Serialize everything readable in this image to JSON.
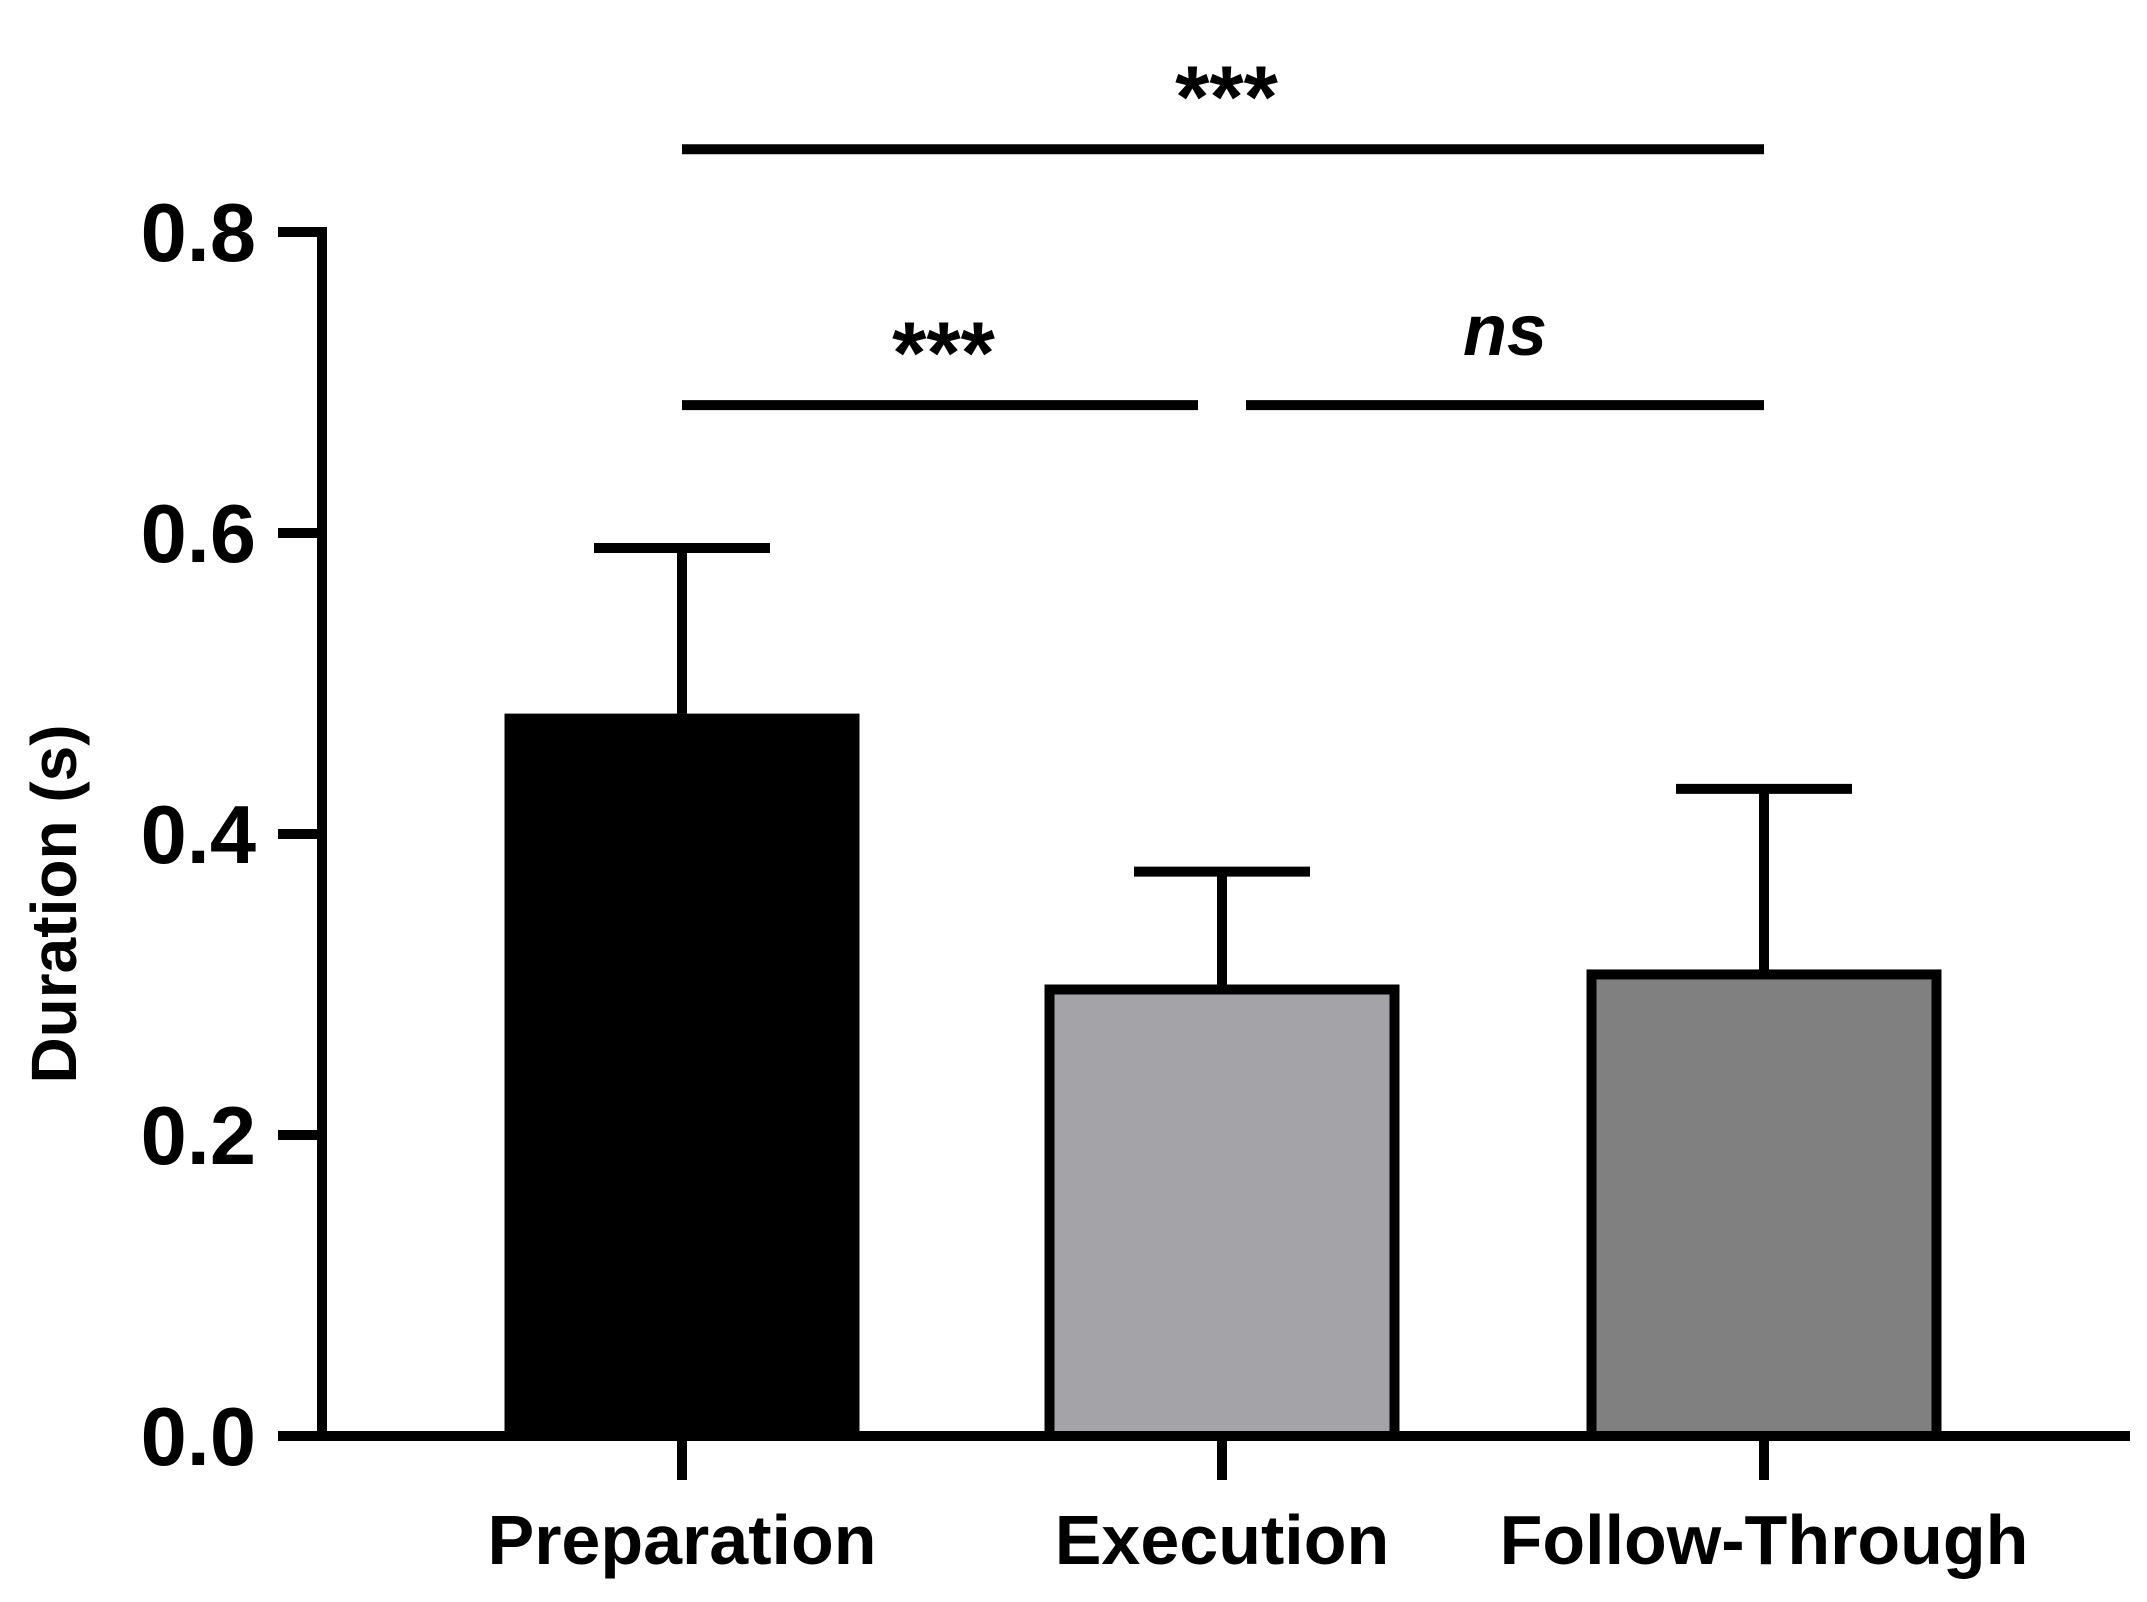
{
  "chart_data": {
    "type": "bar",
    "categories": [
      "Preparation",
      "Execution",
      "Follow-Through"
    ],
    "values": [
      0.48,
      0.3,
      0.31
    ],
    "errors": [
      0.11,
      0.075,
      0.12
    ],
    "bar_fill_colors": [
      "#000000",
      "#a4a3a7",
      "#808080"
    ],
    "bar_edge_color": "#000000",
    "xlabel": "",
    "ylabel": "Duration (s)",
    "ylim": [
      0,
      0.8
    ],
    "yticks": [
      0.0,
      0.2,
      0.4,
      0.6,
      0.8
    ],
    "ytick_labels": [
      "0.0",
      "0.2",
      "0.4",
      "0.6",
      "0.8"
    ],
    "grid": false,
    "legend": "none",
    "significance": [
      {
        "from": "Preparation",
        "to": "Execution",
        "label": "***",
        "level": 0.685
      },
      {
        "from": "Execution",
        "to": "Follow-Through",
        "label": "ns",
        "level": 0.685
      },
      {
        "from": "Preparation",
        "to": "Follow-Through",
        "label": "***",
        "level": 0.855
      }
    ]
  }
}
